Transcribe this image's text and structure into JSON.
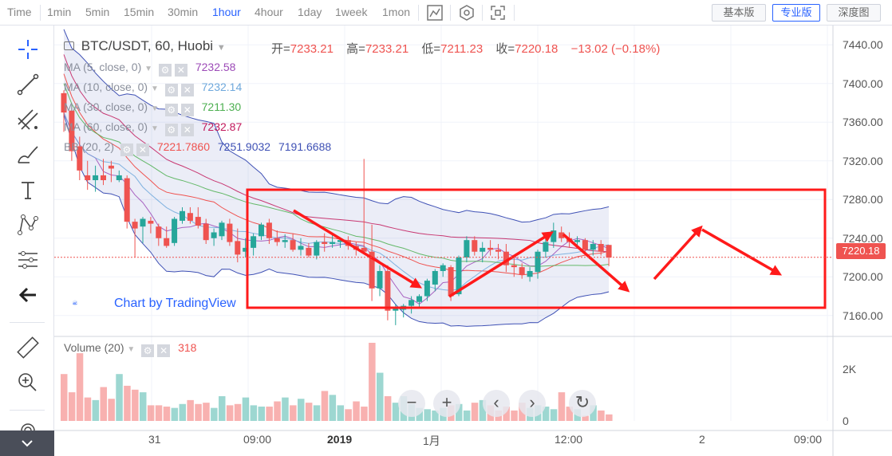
{
  "toolbar": {
    "timeframes": [
      "Time",
      "1min",
      "5min",
      "15min",
      "30min",
      "1hour",
      "4hour",
      "1day",
      "1week",
      "1mon"
    ],
    "active_timeframe": "1hour",
    "views": [
      "基本版",
      "专业版",
      "深度图"
    ],
    "active_view": "专业版"
  },
  "symbol": {
    "title": "BTC/USDT, 60, Huobi",
    "open_label": "开=",
    "open": "7233.21",
    "high_label": "高=",
    "high": "7233.21",
    "low_label": "低=",
    "low": "7211.23",
    "close_label": "收=",
    "close": "7220.18",
    "change": "−13.02 (−0.18%)",
    "last_price": "7220.18"
  },
  "indicators": [
    {
      "label": "MA (5, close, 0)",
      "value": "7232.58",
      "color": "#9c4ab7"
    },
    {
      "label": "MA (10, close, 0)",
      "value": "7232.14",
      "color": "#6ea8dc"
    },
    {
      "label": "MA (30, close, 0)",
      "value": "7211.30",
      "color": "#4caf50"
    },
    {
      "label": "MA (60, close, 0)",
      "value": "7232.87",
      "color": "#c2185b"
    }
  ],
  "bb": {
    "label": "BB (20, 2)",
    "v1": "7221.7860",
    "v2": "7251.9032",
    "v3": "7191.6688",
    "c1": "#ef5350",
    "c2": "#3f51b5",
    "c3": "#3f51b5"
  },
  "volume": {
    "label": "Volume (20)",
    "value": "318"
  },
  "branding": {
    "text": "Chart by TradingView"
  },
  "colors": {
    "up": "#26a69a",
    "down": "#ef5350",
    "box": "#ff1a1a",
    "band": "#3f51b5"
  },
  "chart_data": {
    "type": "candlestick",
    "y_ticks": [
      "7440.00",
      "7400.00",
      "7360.00",
      "7320.00",
      "7280.00",
      "7240.00",
      "7200.00",
      "7160.00"
    ],
    "ylim": [
      7140,
      7460
    ],
    "vol_ticks": [
      "2K",
      "0"
    ],
    "x_ticks": [
      {
        "label": "31",
        "bold": false
      },
      {
        "label": "09:00",
        "bold": false
      },
      {
        "label": "2019",
        "bold": true
      },
      {
        "label": "1月",
        "bold": false
      },
      {
        "label": "12:00",
        "bold": false
      },
      {
        "label": "2",
        "bold": false
      },
      {
        "label": "09:00",
        "bold": false
      }
    ],
    "candles": [
      [
        7390,
        7393,
        7350,
        7370
      ],
      [
        7372,
        7375,
        7320,
        7330
      ],
      [
        7335,
        7345,
        7300,
        7310
      ],
      [
        7305,
        7320,
        7290,
        7300
      ],
      [
        7300,
        7315,
        7288,
        7305
      ],
      [
        7305,
        7322,
        7295,
        7300
      ],
      [
        7315,
        7320,
        7298,
        7312
      ],
      [
        7300,
        7310,
        7298,
        7305
      ],
      [
        7302,
        7305,
        7250,
        7257
      ],
      [
        7257,
        7260,
        7220,
        7250
      ],
      [
        7252,
        7262,
        7235,
        7260
      ],
      [
        7258,
        7262,
        7245,
        7255
      ],
      [
        7252,
        7255,
        7232,
        7240
      ],
      [
        7240,
        7252,
        7230,
        7232
      ],
      [
        7235,
        7262,
        7232,
        7260
      ],
      [
        7258,
        7272,
        7255,
        7268
      ],
      [
        7266,
        7272,
        7255,
        7258
      ],
      [
        7262,
        7272,
        7250,
        7253
      ],
      [
        7255,
        7260,
        7234,
        7238
      ],
      [
        7240,
        7250,
        7232,
        7246
      ],
      [
        7242,
        7258,
        7238,
        7256
      ],
      [
        7255,
        7260,
        7232,
        7236
      ],
      [
        7237,
        7250,
        7215,
        7223
      ],
      [
        7226,
        7240,
        7220,
        7230
      ],
      [
        7230,
        7245,
        7222,
        7242
      ],
      [
        7242,
        7256,
        7238,
        7254
      ],
      [
        7256,
        7260,
        7234,
        7240
      ],
      [
        7240,
        7248,
        7232,
        7236
      ],
      [
        7236,
        7244,
        7230,
        7238
      ],
      [
        7238,
        7245,
        7226,
        7228
      ],
      [
        7228,
        7240,
        7222,
        7232
      ],
      [
        7230,
        7235,
        7220,
        7222
      ],
      [
        7222,
        7238,
        7218,
        7236
      ],
      [
        7236,
        7245,
        7226,
        7234
      ],
      [
        7234,
        7244,
        7230,
        7236
      ],
      [
        7236,
        7241,
        7230,
        7238
      ],
      [
        7238,
        7242,
        7228,
        7232
      ],
      [
        7232,
        7236,
        7222,
        7228
      ],
      [
        7230,
        7322,
        7225,
        7226
      ],
      [
        7226,
        7254,
        7175,
        7188
      ],
      [
        7188,
        7212,
        7180,
        7206
      ],
      [
        7206,
        7212,
        7155,
        7165
      ],
      [
        7165,
        7172,
        7150,
        7168
      ],
      [
        7166,
        7172,
        7158,
        7170
      ],
      [
        7170,
        7180,
        7162,
        7176
      ],
      [
        7174,
        7182,
        7168,
        7180
      ],
      [
        7180,
        7198,
        7175,
        7196
      ],
      [
        7192,
        7208,
        7185,
        7206
      ],
      [
        7206,
        7214,
        7200,
        7212
      ],
      [
        7210,
        7212,
        7175,
        7180
      ],
      [
        7182,
        7222,
        7180,
        7220
      ],
      [
        7220,
        7242,
        7215,
        7238
      ],
      [
        7238,
        7242,
        7222,
        7226
      ],
      [
        7226,
        7236,
        7215,
        7230
      ],
      [
        7230,
        7238,
        7222,
        7228
      ],
      [
        7228,
        7234,
        7218,
        7226
      ],
      [
        7226,
        7234,
        7205,
        7212
      ],
      [
        7212,
        7220,
        7200,
        7210
      ],
      [
        7210,
        7214,
        7198,
        7202
      ],
      [
        7200,
        7210,
        7195,
        7206
      ],
      [
        7205,
        7228,
        7198,
        7226
      ],
      [
        7226,
        7240,
        7220,
        7236
      ],
      [
        7236,
        7256,
        7230,
        7248
      ],
      [
        7246,
        7252,
        7236,
        7240
      ],
      [
        7240,
        7246,
        7230,
        7236
      ],
      [
        7236,
        7242,
        7230,
        7238
      ],
      [
        7238,
        7240,
        7226,
        7228
      ],
      [
        7228,
        7238,
        7222,
        7234
      ],
      [
        7234,
        7238,
        7222,
        7226
      ],
      [
        7233,
        7233,
        7211,
        7220
      ]
    ],
    "volumes": [
      180,
      110,
      260,
      90,
      80,
      130,
      85,
      180,
      135,
      120,
      110,
      60,
      60,
      55,
      50,
      65,
      80,
      65,
      70,
      50,
      95,
      60,
      65,
      90,
      60,
      55,
      55,
      75,
      90,
      60,
      85,
      70,
      60,
      115,
      100,
      60,
      45,
      75,
      55,
      300,
      185,
      95,
      70,
      95,
      65,
      50,
      45,
      40,
      50,
      60,
      65,
      40,
      70,
      80,
      60,
      40,
      55,
      40,
      70,
      50,
      60,
      55,
      45,
      110,
      55,
      45,
      20,
      60,
      40,
      25
    ],
    "volume_ylim": [
      0,
      3000
    ]
  }
}
